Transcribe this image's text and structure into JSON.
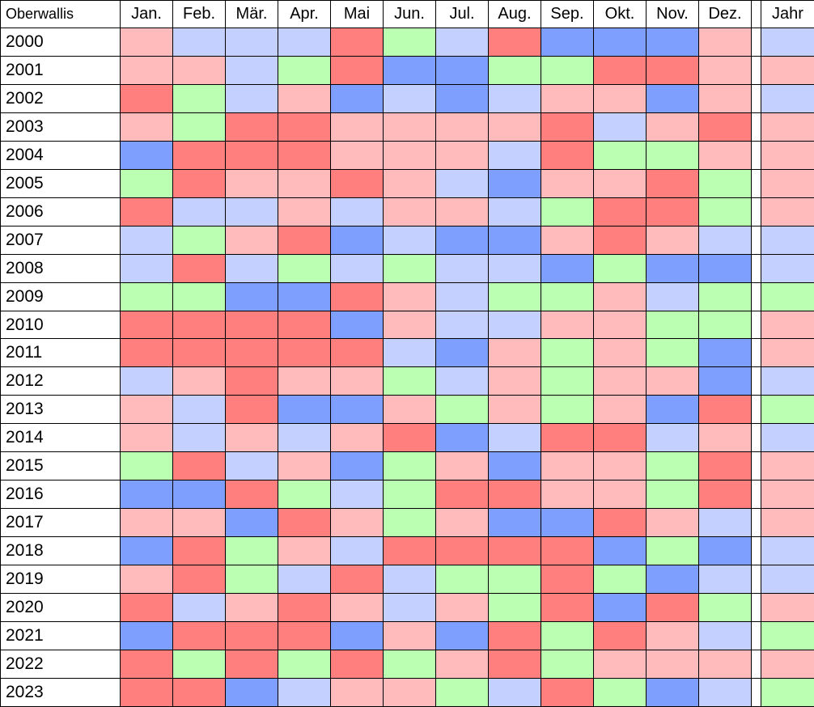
{
  "chart_data": {
    "type": "heatmap",
    "corner_label": "Oberwallis",
    "columns": [
      "Jan.",
      "Feb.",
      "Mär.",
      "Apr.",
      "Mai",
      "Jun.",
      "Jul.",
      "Aug.",
      "Sep.",
      "Okt.",
      "Nov.",
      "Dez."
    ],
    "annual_column": "Jahr",
    "colors": {
      "R": "#ff7f7f",
      "r": "#ffbbbb",
      "g": "#bbffb3",
      "b": "#c4d0ff",
      "B": "#7f9fff"
    },
    "rows": [
      {
        "year": "2000",
        "months": [
          "r",
          "b",
          "b",
          "b",
          "R",
          "g",
          "b",
          "R",
          "B",
          "B",
          "B",
          "r"
        ],
        "annual": "b"
      },
      {
        "year": "2001",
        "months": [
          "r",
          "r",
          "b",
          "g",
          "R",
          "B",
          "B",
          "g",
          "g",
          "R",
          "R",
          "r"
        ],
        "annual": "r"
      },
      {
        "year": "2002",
        "months": [
          "R",
          "g",
          "b",
          "r",
          "B",
          "b",
          "B",
          "b",
          "r",
          "r",
          "B",
          "r"
        ],
        "annual": "b"
      },
      {
        "year": "2003",
        "months": [
          "r",
          "g",
          "R",
          "R",
          "r",
          "r",
          "r",
          "r",
          "R",
          "b",
          "r",
          "R"
        ],
        "annual": "r"
      },
      {
        "year": "2004",
        "months": [
          "B",
          "R",
          "R",
          "R",
          "r",
          "r",
          "r",
          "b",
          "R",
          "g",
          "g",
          "r"
        ],
        "annual": "r"
      },
      {
        "year": "2005",
        "months": [
          "g",
          "R",
          "r",
          "r",
          "R",
          "r",
          "b",
          "B",
          "r",
          "r",
          "R",
          "g"
        ],
        "annual": "r"
      },
      {
        "year": "2006",
        "months": [
          "R",
          "b",
          "b",
          "r",
          "b",
          "r",
          "r",
          "b",
          "g",
          "R",
          "R",
          "g"
        ],
        "annual": "r"
      },
      {
        "year": "2007",
        "months": [
          "b",
          "g",
          "r",
          "R",
          "B",
          "b",
          "B",
          "B",
          "r",
          "R",
          "r",
          "b"
        ],
        "annual": "b"
      },
      {
        "year": "2008",
        "months": [
          "b",
          "R",
          "b",
          "g",
          "b",
          "g",
          "b",
          "b",
          "B",
          "g",
          "B",
          "B"
        ],
        "annual": "b"
      },
      {
        "year": "2009",
        "months": [
          "g",
          "g",
          "B",
          "B",
          "R",
          "r",
          "b",
          "g",
          "g",
          "r",
          "b",
          "g"
        ],
        "annual": "g"
      },
      {
        "year": "2010",
        "months": [
          "R",
          "R",
          "R",
          "R",
          "B",
          "r",
          "b",
          "b",
          "r",
          "r",
          "g",
          "g"
        ],
        "annual": "r"
      },
      {
        "year": "2011",
        "months": [
          "R",
          "R",
          "R",
          "R",
          "R",
          "b",
          "B",
          "r",
          "g",
          "r",
          "g",
          "B"
        ],
        "annual": "r"
      },
      {
        "year": "2012",
        "months": [
          "b",
          "r",
          "R",
          "r",
          "r",
          "g",
          "b",
          "r",
          "g",
          "r",
          "r",
          "B"
        ],
        "annual": "b"
      },
      {
        "year": "2013",
        "months": [
          "r",
          "b",
          "R",
          "B",
          "B",
          "r",
          "g",
          "r",
          "g",
          "r",
          "B",
          "R"
        ],
        "annual": "g"
      },
      {
        "year": "2014",
        "months": [
          "r",
          "b",
          "r",
          "b",
          "r",
          "R",
          "B",
          "b",
          "R",
          "R",
          "b",
          "r"
        ],
        "annual": "b"
      },
      {
        "year": "2015",
        "months": [
          "g",
          "R",
          "b",
          "r",
          "B",
          "g",
          "r",
          "B",
          "r",
          "r",
          "g",
          "R"
        ],
        "annual": "r"
      },
      {
        "year": "2016",
        "months": [
          "B",
          "B",
          "R",
          "g",
          "b",
          "g",
          "R",
          "R",
          "r",
          "r",
          "g",
          "R"
        ],
        "annual": "r"
      },
      {
        "year": "2017",
        "months": [
          "r",
          "r",
          "B",
          "R",
          "r",
          "g",
          "r",
          "B",
          "B",
          "R",
          "r",
          "b"
        ],
        "annual": "r"
      },
      {
        "year": "2018",
        "months": [
          "B",
          "R",
          "g",
          "r",
          "b",
          "R",
          "R",
          "R",
          "R",
          "B",
          "g",
          "B"
        ],
        "annual": "b"
      },
      {
        "year": "2019",
        "months": [
          "r",
          "R",
          "g",
          "b",
          "R",
          "b",
          "g",
          "g",
          "R",
          "g",
          "B",
          "b"
        ],
        "annual": "b"
      },
      {
        "year": "2020",
        "months": [
          "R",
          "b",
          "r",
          "R",
          "r",
          "b",
          "r",
          "g",
          "R",
          "B",
          "R",
          "g"
        ],
        "annual": "r"
      },
      {
        "year": "2021",
        "months": [
          "B",
          "R",
          "R",
          "R",
          "B",
          "r",
          "B",
          "R",
          "g",
          "R",
          "r",
          "b"
        ],
        "annual": "g"
      },
      {
        "year": "2022",
        "months": [
          "R",
          "g",
          "R",
          "g",
          "R",
          "g",
          "r",
          "R",
          "g",
          "r",
          "r",
          "r"
        ],
        "annual": "r"
      },
      {
        "year": "2023",
        "months": [
          "R",
          "R",
          "B",
          "b",
          "r",
          "r",
          "g",
          "b",
          "R",
          "g",
          "B",
          "b"
        ],
        "annual": "g"
      }
    ]
  }
}
